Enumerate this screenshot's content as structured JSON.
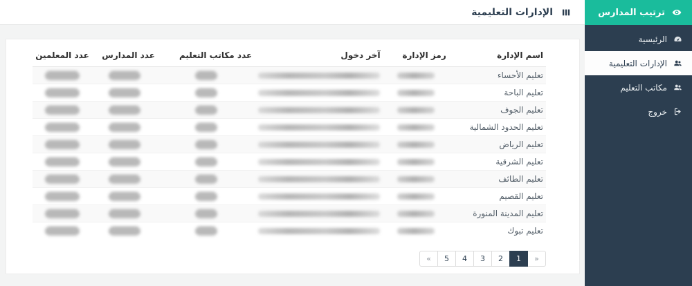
{
  "colors": {
    "accent_teal": "#1abc9c",
    "sidebar_navy": "#2c3e50",
    "active_page_bg": "#2c3e50"
  },
  "sidebar": {
    "brand": {
      "label": "ترتيب المدارس",
      "icon": "eye"
    },
    "items": [
      {
        "id": "home",
        "label": "الرئيسية",
        "icon": "dashboard",
        "active": false
      },
      {
        "id": "education-departments",
        "label": "الإدارات التعليمية",
        "icon": "users",
        "active": true
      },
      {
        "id": "education-offices",
        "label": "مكاتب التعليم",
        "icon": "users",
        "active": false
      },
      {
        "id": "logout",
        "label": "خروج",
        "icon": "signout",
        "active": false
      }
    ]
  },
  "header": {
    "title": "الإدارات التعليمية",
    "icon": "bars"
  },
  "table": {
    "values_redacted": true,
    "columns": [
      {
        "key": "name",
        "label": "اسم الإدارة"
      },
      {
        "key": "code",
        "label": "رمز الإدارة"
      },
      {
        "key": "last_login",
        "label": "آخر دخول"
      },
      {
        "key": "offices",
        "label": "عدد مكاتب التعليم"
      },
      {
        "key": "schools",
        "label": "عدد المدارس"
      },
      {
        "key": "teachers",
        "label": "عدد المعلمين"
      }
    ],
    "rows": [
      {
        "name": "تعليم الأحساء"
      },
      {
        "name": "تعليم الباحة"
      },
      {
        "name": "تعليم الجوف"
      },
      {
        "name": "تعليم الحدود الشمالية"
      },
      {
        "name": "تعليم الرياض"
      },
      {
        "name": "تعليم الشرقية"
      },
      {
        "name": "تعليم الطائف"
      },
      {
        "name": "تعليم القصيم"
      },
      {
        "name": "تعليم المدينة المنورة"
      },
      {
        "name": "تعليم تبوك"
      }
    ]
  },
  "pagination": {
    "items": [
      "«",
      "5",
      "4",
      "3",
      "2",
      "1",
      "»"
    ],
    "active": "1"
  }
}
